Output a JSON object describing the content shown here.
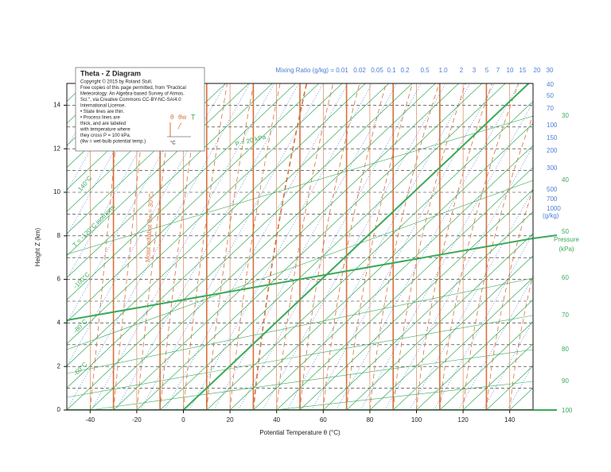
{
  "chart_data": {
    "type": "theta-z",
    "title": "Theta - Z   Diagram",
    "notes": [
      "Copyright © 2015 by Roland Stull.",
      "Free copies of this page permitted, from \"Practical",
      "Meteorology: An Algebra-based Survey of Atmos.",
      "Sci.\", via Creative Commons CC-BY-NC-SA/4.0",
      "International License.",
      "• State lines are thin.",
      "• Process lines are",
      "thick, and are labeled",
      "with temperature where",
      "they cross P = 100 kPa.",
      "(θw = wet-bulb potential temp.)"
    ],
    "legend_symbols": [
      "θ",
      "θw",
      "T",
      "°C"
    ],
    "xlabel": "Potential Temperature θ (°C)",
    "ylabel": "Height  Z (km)",
    "xlim": [
      -50,
      150
    ],
    "ylim": [
      0,
      15
    ],
    "xticks": [
      -40,
      -20,
      0,
      20,
      40,
      60,
      80,
      100,
      120,
      140
    ],
    "yticks": [
      0,
      2,
      4,
      6,
      8,
      10,
      12,
      14
    ],
    "mixing_ratio_label": "Mixing Ratio (g/kg)  =",
    "mixing_ratios": [
      "0.01",
      "0.02",
      "0.05",
      "0.1",
      "0.2",
      "0.5",
      "1.0",
      "2",
      "3",
      "5",
      "7",
      "10",
      "15",
      "20",
      "30"
    ],
    "mixing_ratios_right": [
      "40",
      "50",
      "70",
      "100",
      "150",
      "200",
      "300",
      "500",
      "700",
      "1000",
      "(g/kg)"
    ],
    "pressure_labels": [
      "30",
      "40",
      "50",
      "60",
      "70",
      "80",
      "90",
      "100"
    ],
    "pressure_title": "Pressure",
    "pressure_unit": "(kPa)",
    "line_labels": [
      "140°C",
      "T = -120°C isotherm",
      "-100°C",
      "-80°C",
      "-60°C",
      "P = 20 kPa",
      "Moist adiabat θw = 30°C"
    ]
  }
}
